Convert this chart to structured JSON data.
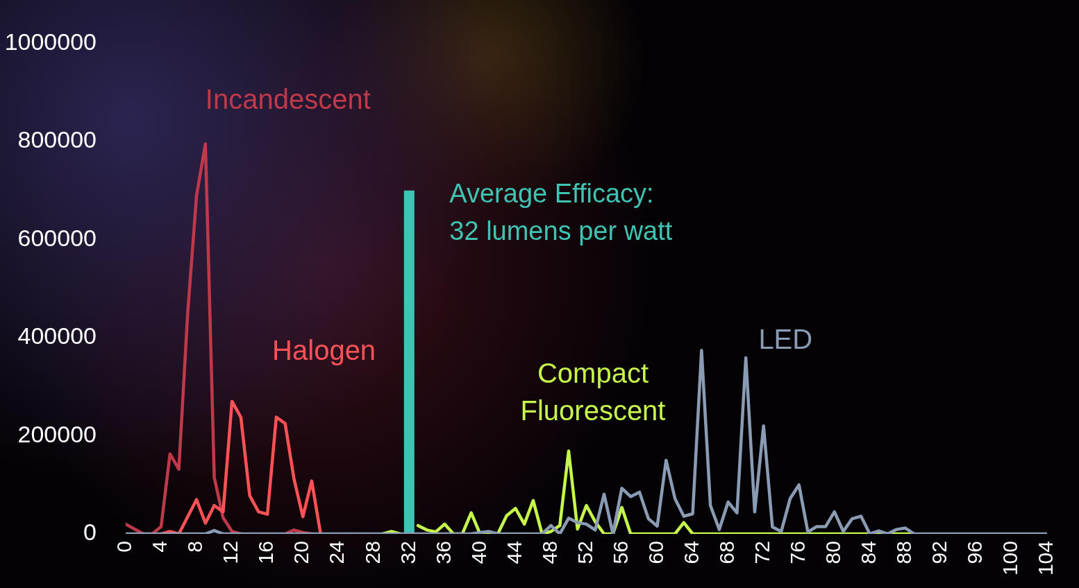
{
  "chart_data": {
    "type": "line",
    "x": [
      0,
      1,
      2,
      3,
      4,
      5,
      6,
      7,
      8,
      9,
      10,
      11,
      12,
      13,
      14,
      15,
      16,
      17,
      18,
      19,
      20,
      21,
      22,
      23,
      24,
      25,
      26,
      27,
      28,
      29,
      30,
      31,
      32,
      33,
      34,
      35,
      36,
      37,
      38,
      39,
      40,
      41,
      42,
      43,
      44,
      45,
      46,
      47,
      48,
      49,
      50,
      51,
      52,
      53,
      54,
      55,
      56,
      57,
      58,
      59,
      60,
      61,
      62,
      63,
      64,
      65,
      66,
      67,
      68,
      69,
      70,
      71,
      72,
      73,
      74,
      75,
      76,
      77,
      78,
      79,
      80,
      81,
      82,
      83,
      84,
      85,
      86,
      87,
      88,
      89,
      90,
      91,
      92,
      93,
      94,
      95,
      96,
      97,
      98,
      99,
      100,
      101,
      102,
      103,
      104
    ],
    "series": [
      {
        "name": "Incandescent",
        "color": "#c0394b",
        "values": [
          20000,
          10000,
          0,
          0,
          15000,
          163000,
          132000,
          450000,
          690000,
          795000,
          115000,
          33000,
          5000,
          0,
          null,
          null,
          null,
          null,
          0,
          8000,
          3000,
          0,
          null,
          null,
          null,
          null,
          null,
          null,
          null,
          null,
          null,
          null,
          null,
          null,
          null,
          null,
          null,
          null,
          null,
          null,
          null,
          null,
          null,
          null,
          null,
          null,
          null,
          null,
          null,
          null,
          null,
          null,
          null,
          null,
          null,
          null,
          null,
          null,
          null,
          null,
          null,
          null,
          null,
          null,
          null,
          null,
          null,
          null,
          null,
          null,
          null,
          null,
          null,
          null,
          null,
          null,
          null,
          null,
          null,
          null,
          null,
          null,
          null,
          null,
          null,
          null,
          null,
          null,
          null,
          null,
          null,
          null,
          null,
          null,
          null,
          null,
          null,
          null,
          null,
          null,
          null,
          null,
          null,
          null,
          null
        ]
      },
      {
        "name": "Halogen",
        "color": "#ff5257",
        "values": [
          null,
          null,
          null,
          null,
          0,
          5000,
          0,
          35000,
          70000,
          22000,
          58000,
          45000,
          270000,
          238000,
          78000,
          45000,
          40000,
          238000,
          225000,
          112000,
          35000,
          108000,
          0,
          null,
          null,
          null,
          null,
          null,
          null,
          null,
          null,
          null,
          null,
          null,
          null,
          null,
          null,
          null,
          null,
          null,
          null,
          null,
          null,
          null,
          null,
          null,
          null,
          null,
          null,
          null,
          null,
          null,
          null,
          null,
          null,
          null,
          null,
          null,
          null,
          null,
          null,
          null,
          null,
          null,
          null,
          null,
          null,
          null,
          null,
          null,
          null,
          null,
          null,
          null,
          null,
          null,
          null,
          null,
          null,
          null,
          null,
          null,
          null,
          null,
          null,
          null,
          null,
          null,
          null,
          null,
          null,
          null,
          null,
          null,
          null,
          null,
          null,
          null,
          null,
          null,
          null,
          null,
          null,
          null,
          null
        ]
      },
      {
        "name": "Compact Fluorescent",
        "color": "#c6f54b",
        "values": [
          null,
          null,
          null,
          null,
          null,
          null,
          null,
          null,
          null,
          null,
          null,
          null,
          null,
          null,
          null,
          null,
          null,
          null,
          null,
          null,
          null,
          null,
          null,
          null,
          null,
          null,
          null,
          null,
          null,
          0,
          5000,
          0,
          null,
          17000,
          8000,
          4000,
          20000,
          0,
          0,
          43000,
          0,
          0,
          0,
          37000,
          52000,
          20000,
          68000,
          0,
          5000,
          17000,
          169000,
          10000,
          58000,
          25000,
          0,
          0,
          54000,
          0,
          0,
          0,
          0,
          0,
          0,
          23000,
          0,
          0,
          0,
          0,
          0,
          0,
          0,
          0,
          0,
          0,
          0,
          0,
          0,
          0,
          0,
          0,
          0,
          0,
          0,
          0,
          0,
          0,
          0,
          0,
          0,
          0,
          null,
          null,
          null,
          null,
          null,
          null,
          null,
          null,
          null,
          null,
          null,
          null,
          null,
          null,
          null
        ]
      },
      {
        "name": "LED",
        "color": "#8a9bb4",
        "values": [
          0,
          0,
          0,
          0,
          0,
          0,
          0,
          0,
          0,
          0,
          7000,
          0,
          0,
          0,
          0,
          0,
          0,
          0,
          0,
          0,
          0,
          0,
          0,
          0,
          0,
          0,
          0,
          0,
          0,
          0,
          0,
          0,
          0,
          0,
          0,
          0,
          0,
          0,
          0,
          0,
          3000,
          5000,
          0,
          0,
          0,
          0,
          0,
          0,
          17000,
          0,
          32000,
          23000,
          20000,
          8000,
          81000,
          0,
          93000,
          76000,
          85000,
          31000,
          16000,
          150000,
          72000,
          36000,
          41000,
          374000,
          58000,
          9000,
          65000,
          43000,
          359000,
          45000,
          220000,
          14000,
          5000,
          72000,
          100000,
          4000,
          15000,
          15000,
          45000,
          5000,
          31000,
          36000,
          0,
          6000,
          0,
          9000,
          12000,
          0,
          0,
          0,
          0,
          0,
          0,
          0,
          0,
          0,
          0,
          0,
          0,
          0,
          0,
          0,
          0
        ]
      }
    ],
    "ref_lines": [
      {
        "axis": "x",
        "value": 32,
        "label": "Average Efficacy: 32 lumens per watt",
        "color": "#3fc4b4"
      }
    ],
    "xlim": [
      0,
      104
    ],
    "xticks": [
      0,
      4,
      8,
      12,
      16,
      20,
      24,
      28,
      32,
      36,
      40,
      44,
      48,
      52,
      56,
      60,
      64,
      68,
      72,
      76,
      80,
      84,
      88,
      92,
      96,
      100,
      104
    ],
    "ylim": [
      0,
      1000000
    ],
    "yticks": [
      0,
      200000,
      400000,
      600000,
      800000,
      1000000
    ],
    "grid": false,
    "legend": false,
    "marker": "none",
    "line_style": "solid"
  }
}
